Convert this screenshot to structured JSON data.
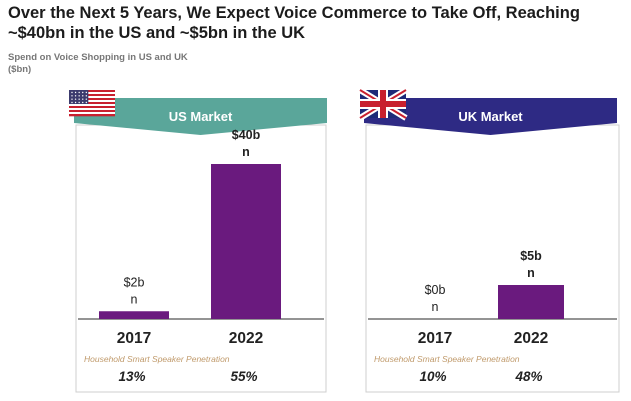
{
  "title": "Over the Next 5 Years, We Expect Voice Commerce to Take Off, Reaching ~$40bn in the US and ~$5bn in the UK",
  "subtitle": "Spend on Voice Shopping in US and UK",
  "units": "($bn)",
  "colors": {
    "us_accent": "#5aa69a",
    "uk_accent": "#2e2a84",
    "bar": "#6a1a7e",
    "small_bar": "#6fb3a8",
    "penetration_label": "#c09a6b"
  },
  "icons": {
    "us": "us-flag-icon",
    "uk": "uk-flag-icon"
  },
  "chart_data": [
    {
      "type": "bar",
      "panel_title": "US Market",
      "categories": [
        "2017",
        "2022"
      ],
      "values": [
        2,
        40
      ],
      "value_labels": [
        [
          "$2b",
          "n"
        ],
        [
          "$40b",
          "n"
        ]
      ],
      "footnote_label": "Household Smart Speaker Penetration",
      "penetration": [
        "13%",
        "55%"
      ]
    },
    {
      "type": "bar",
      "panel_title": "UK Market",
      "categories": [
        "2017",
        "2022"
      ],
      "values": [
        0,
        5
      ],
      "value_labels": [
        [
          "$0b",
          "n"
        ],
        [
          "$5b",
          "n"
        ]
      ],
      "footnote_label": "Household Smart Speaker Penetration",
      "penetration": [
        "10%",
        "48%"
      ]
    }
  ]
}
